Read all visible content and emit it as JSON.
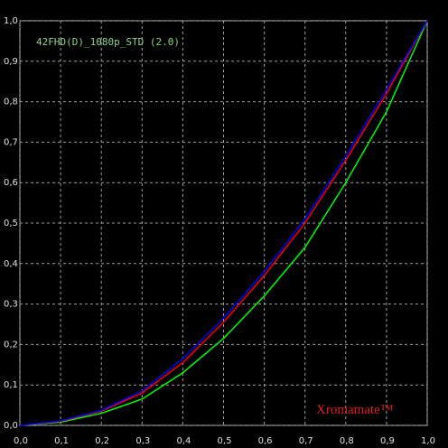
{
  "chart_data": {
    "type": "line",
    "title": "42FHD(D)_1080p_STD (2.0)",
    "annotation": "Xromamate™",
    "x": [
      0,
      0.1,
      0.2,
      0.3,
      0.4,
      0.5,
      0.6,
      0.7,
      0.8,
      0.9,
      1
    ],
    "series": [
      {
        "color": "#00ff00",
        "values": [
          0,
          0.008,
          0.03,
          0.065,
          0.13,
          0.215,
          0.32,
          0.44,
          0.6,
          0.775,
          1
        ]
      },
      {
        "color": "#ff0000",
        "values": [
          0,
          0.01,
          0.035,
          0.08,
          0.155,
          0.255,
          0.37,
          0.5,
          0.655,
          0.82,
          1
        ]
      },
      {
        "color": "#0000ff",
        "values": [
          0,
          0.011,
          0.037,
          0.085,
          0.165,
          0.265,
          0.38,
          0.51,
          0.665,
          0.83,
          1
        ]
      }
    ],
    "xlim": [
      0,
      1
    ],
    "ylim": [
      0,
      1
    ],
    "xticks": [
      {
        "value": 0,
        "label": "0,0"
      },
      {
        "value": 0.1,
        "label": "0,1"
      },
      {
        "value": 0.2,
        "label": "0,2"
      },
      {
        "value": 0.3,
        "label": "0,3"
      },
      {
        "value": 0.4,
        "label": "0,4"
      },
      {
        "value": 0.5,
        "label": "0,5"
      },
      {
        "value": 0.6,
        "label": "0,6"
      },
      {
        "value": 0.7,
        "label": "0,7"
      },
      {
        "value": 0.8,
        "label": "0,8"
      },
      {
        "value": 0.9,
        "label": "0,9"
      },
      {
        "value": 1,
        "label": "1,0"
      }
    ],
    "yticks": [
      {
        "value": 0,
        "label": "0,0"
      },
      {
        "value": 0.1,
        "label": "0,1"
      },
      {
        "value": 0.2,
        "label": "0,2"
      },
      {
        "value": 0.3,
        "label": "0,3"
      },
      {
        "value": 0.4,
        "label": "0,4"
      },
      {
        "value": 0.5,
        "label": "0,5"
      },
      {
        "value": 0.6,
        "label": "0,6"
      },
      {
        "value": 0.7,
        "label": "0,7"
      },
      {
        "value": 0.8,
        "label": "0,8"
      },
      {
        "value": 0.9,
        "label": "0,9"
      },
      {
        "value": 1,
        "label": "1,0"
      }
    ],
    "grid": true
  }
}
